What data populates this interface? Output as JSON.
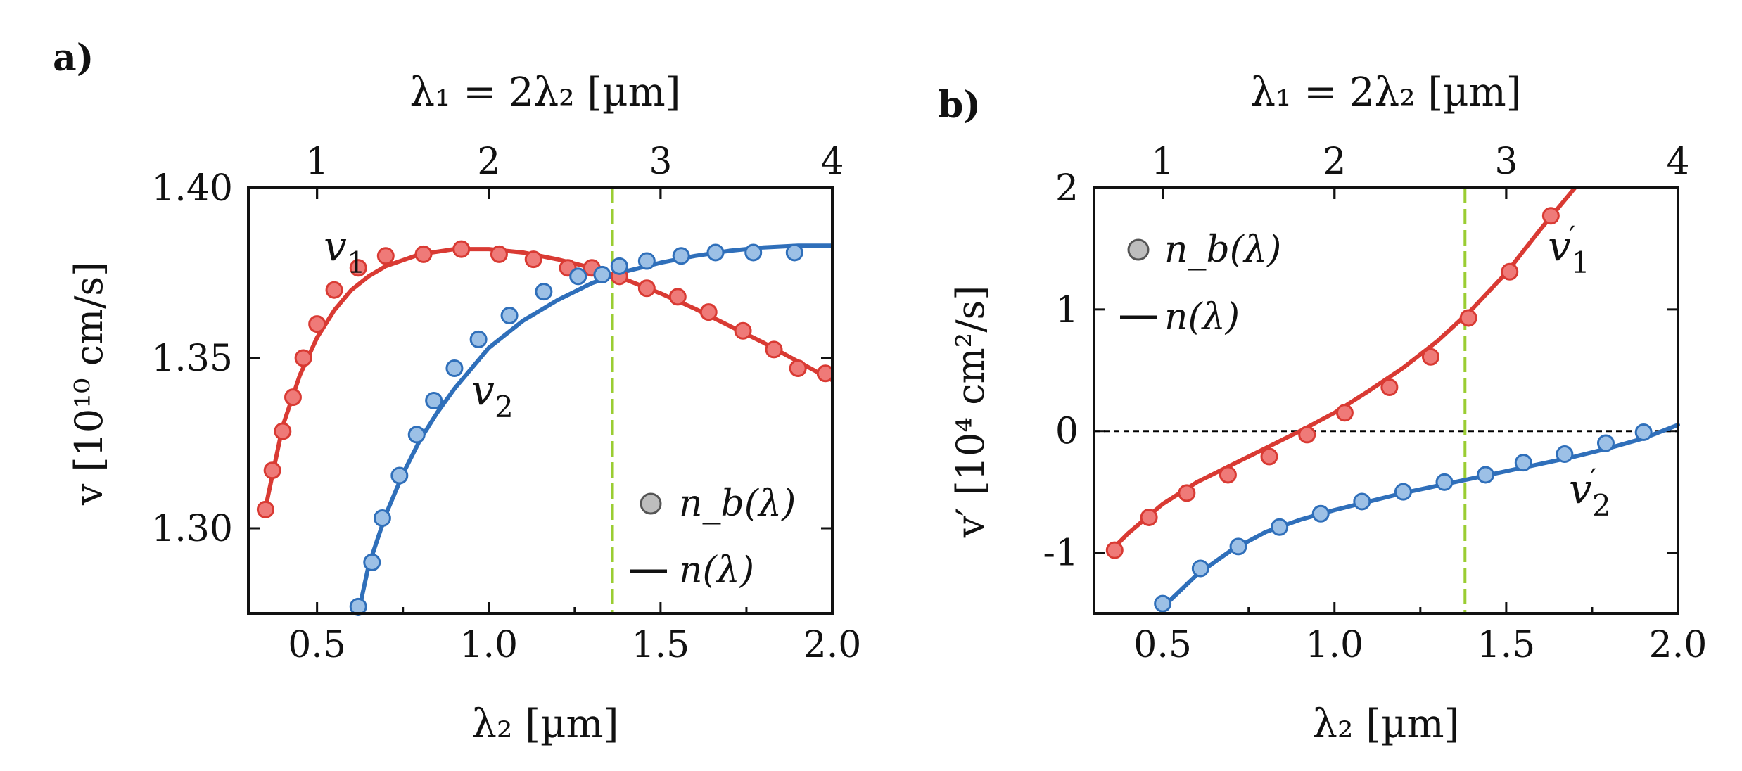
{
  "colors": {
    "red": "#d93a33",
    "red_fill": "#ef7a78",
    "blue": "#2f6fba",
    "blue_fill": "#9cc0e6",
    "marker_gray": "#bdbdbd",
    "green_dash": "#9acd32",
    "zero_line": "#000000"
  },
  "chart_data": [
    {
      "panel_label": "a)",
      "type": "line",
      "title_top_axis": "λ₁ = 2λ₂ [µm]",
      "xlabel": "λ₂ [µm]",
      "ylabel": "v [10¹⁰ cm/s]",
      "xlim": [
        0.3,
        2.0
      ],
      "ylim": [
        1.275,
        1.4
      ],
      "xticks": [
        "0.5",
        "1.0",
        "1.5",
        "2.0"
      ],
      "xtick_values": [
        0.5,
        1.0,
        1.5,
        2.0
      ],
      "yticks": [
        "1.30",
        "1.35",
        "1.40"
      ],
      "ytick_values": [
        1.3,
        1.35,
        1.4
      ],
      "top_ticks": [
        "1",
        "2",
        "3",
        "4"
      ],
      "top_tick_values": [
        1,
        2,
        3,
        4
      ],
      "vline_x": 1.36,
      "series": [
        {
          "name": "v1",
          "label_base": "v",
          "label_sub": "1",
          "color": "red",
          "line_x": [
            0.35,
            0.4,
            0.45,
            0.5,
            0.55,
            0.6,
            0.65,
            0.7,
            0.8,
            0.9,
            1.0,
            1.1,
            1.2,
            1.3,
            1.4,
            1.5,
            1.6,
            1.7,
            1.8,
            1.9,
            2.0
          ],
          "line_y": [
            1.306,
            1.33,
            1.345,
            1.356,
            1.364,
            1.37,
            1.374,
            1.377,
            1.3805,
            1.382,
            1.382,
            1.381,
            1.379,
            1.3765,
            1.373,
            1.369,
            1.3645,
            1.3595,
            1.3545,
            1.349,
            1.3435
          ],
          "points_x": [
            0.35,
            0.37,
            0.4,
            0.43,
            0.46,
            0.5,
            0.55,
            0.62,
            0.7,
            0.81,
            0.92,
            1.03,
            1.13,
            1.23,
            1.3,
            1.38,
            1.46,
            1.55,
            1.64,
            1.74,
            1.83,
            1.9,
            1.98
          ],
          "points_y": [
            1.3055,
            1.317,
            1.3285,
            1.3385,
            1.35,
            1.36,
            1.37,
            1.3765,
            1.38,
            1.3805,
            1.382,
            1.3805,
            1.379,
            1.3765,
            1.3765,
            1.374,
            1.3705,
            1.368,
            1.3635,
            1.358,
            1.3525,
            1.347,
            1.3455
          ]
        },
        {
          "name": "v2",
          "label_base": "v",
          "label_sub": "2",
          "color": "blue",
          "line_x": [
            0.62,
            0.65,
            0.7,
            0.75,
            0.8,
            0.85,
            0.9,
            1.0,
            1.1,
            1.2,
            1.3,
            1.4,
            1.5,
            1.6,
            1.7,
            1.8,
            1.9,
            2.0
          ],
          "line_y": [
            1.275,
            1.289,
            1.304,
            1.316,
            1.326,
            1.334,
            1.341,
            1.353,
            1.361,
            1.367,
            1.372,
            1.3755,
            1.378,
            1.38,
            1.3815,
            1.3825,
            1.383,
            1.383
          ],
          "points_x": [
            0.62,
            0.66,
            0.69,
            0.74,
            0.79,
            0.84,
            0.9,
            0.97,
            1.06,
            1.16,
            1.26,
            1.33,
            1.38,
            1.46,
            1.56,
            1.66,
            1.77,
            1.89
          ],
          "points_y": [
            1.277,
            1.29,
            1.303,
            1.3155,
            1.3275,
            1.3375,
            1.347,
            1.3555,
            1.3625,
            1.3695,
            1.374,
            1.3745,
            1.377,
            1.3785,
            1.38,
            1.381,
            1.381,
            1.381
          ]
        }
      ],
      "legend": {
        "marker_label": "n_b(λ)",
        "line_label": "n(λ)",
        "placement": "bottom-right"
      }
    },
    {
      "panel_label": "b)",
      "type": "line",
      "title_top_axis": "λ₁ = 2λ₂ [µm]",
      "xlabel": "λ₂ [µm]",
      "ylabel": "v′ [10⁴ cm²/s]",
      "xlim": [
        0.3,
        2.0
      ],
      "ylim": [
        -1.5,
        2.0
      ],
      "xticks": [
        "0.5",
        "1.0",
        "1.5",
        "2.0"
      ],
      "xtick_values": [
        0.5,
        1.0,
        1.5,
        2.0
      ],
      "yticks": [
        "-1",
        "0",
        "1",
        "2"
      ],
      "ytick_values": [
        -1,
        0,
        1,
        2
      ],
      "top_ticks": [
        "1",
        "2",
        "3",
        "4"
      ],
      "top_tick_values": [
        1,
        2,
        3,
        4
      ],
      "vline_x": 1.38,
      "zero_line": true,
      "series": [
        {
          "name": "v1'",
          "label_base": "v",
          "label_sub": "1",
          "color": "red",
          "line_x": [
            0.35,
            0.4,
            0.5,
            0.6,
            0.7,
            0.8,
            0.9,
            1.0,
            1.1,
            1.2,
            1.3,
            1.4,
            1.5,
            1.6,
            1.7
          ],
          "line_y": [
            -0.98,
            -0.84,
            -0.6,
            -0.42,
            -0.28,
            -0.14,
            0.0,
            0.15,
            0.33,
            0.52,
            0.74,
            1.0,
            1.3,
            1.66,
            2.0
          ],
          "points_x": [
            0.36,
            0.46,
            0.57,
            0.69,
            0.81,
            0.92,
            1.03,
            1.16,
            1.28,
            1.39,
            1.51,
            1.63
          ],
          "points_y": [
            -0.98,
            -0.71,
            -0.51,
            -0.36,
            -0.21,
            -0.03,
            0.15,
            0.36,
            0.61,
            0.93,
            1.31,
            1.77
          ]
        },
        {
          "name": "v2'",
          "label_base": "v",
          "label_sub": "2",
          "color": "blue",
          "line_x": [
            0.5,
            0.6,
            0.7,
            0.8,
            0.9,
            1.0,
            1.1,
            1.2,
            1.3,
            1.4,
            1.5,
            1.6,
            1.7,
            1.8,
            1.9,
            2.0
          ],
          "line_y": [
            -1.45,
            -1.18,
            -0.98,
            -0.83,
            -0.73,
            -0.65,
            -0.58,
            -0.51,
            -0.45,
            -0.39,
            -0.33,
            -0.27,
            -0.21,
            -0.14,
            -0.06,
            0.05
          ],
          "points_x": [
            0.5,
            0.61,
            0.72,
            0.84,
            0.96,
            1.08,
            1.2,
            1.32,
            1.44,
            1.55,
            1.67,
            1.79,
            1.9
          ],
          "points_y": [
            -1.42,
            -1.13,
            -0.95,
            -0.79,
            -0.68,
            -0.58,
            -0.5,
            -0.42,
            -0.36,
            -0.26,
            -0.19,
            -0.1,
            -0.01
          ]
        }
      ],
      "legend": {
        "marker_label": "n_b(λ)",
        "line_label": "n(λ)",
        "placement": "top-left"
      }
    }
  ]
}
